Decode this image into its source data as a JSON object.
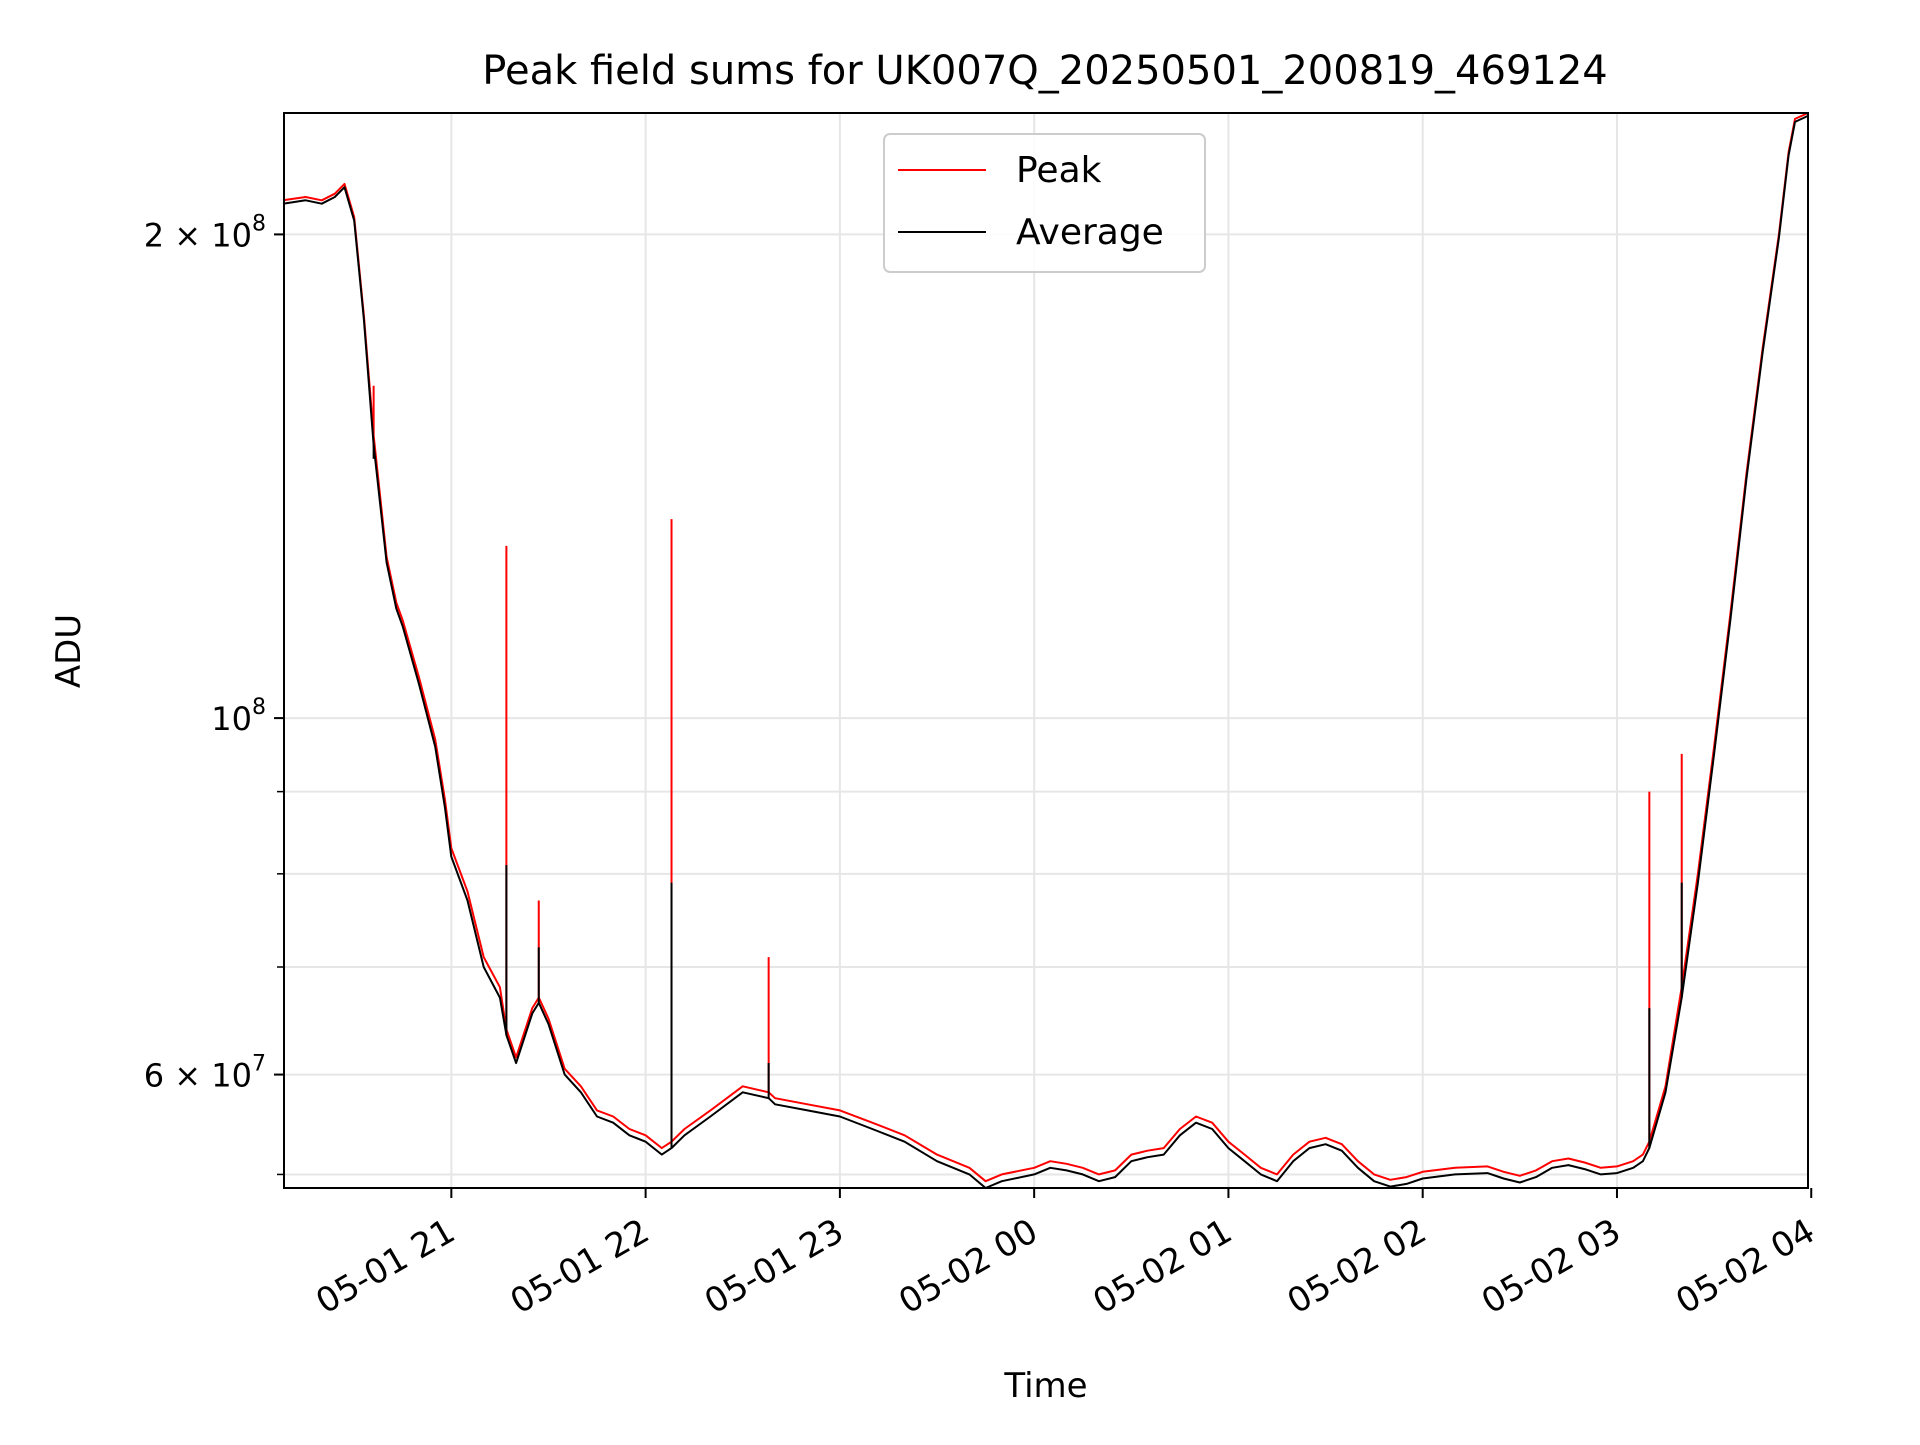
{
  "chart_data": {
    "type": "line",
    "title": "Peak field sums for UK007Q_20250501_200819_469124",
    "xlabel": "Time",
    "ylabel": "ADU",
    "y_scale": "log",
    "ylim": [
      51000000,
      238000000
    ],
    "xlim": [
      "2025-05-01 20:08:19",
      "2025-05-02 03:59:00"
    ],
    "grid": true,
    "legend_position": "upper center",
    "x_ticks": [
      {
        "t": "2025-05-01 21:00",
        "label": "05-01 21"
      },
      {
        "t": "2025-05-01 22:00",
        "label": "05-01 22"
      },
      {
        "t": "2025-05-01 23:00",
        "label": "05-01 23"
      },
      {
        "t": "2025-05-02 00:00",
        "label": "05-02 00"
      },
      {
        "t": "2025-05-02 01:00",
        "label": "05-02 01"
      },
      {
        "t": "2025-05-02 02:00",
        "label": "05-02 02"
      },
      {
        "t": "2025-05-02 03:00",
        "label": "05-02 03"
      },
      {
        "t": "2025-05-02 04:00",
        "label": "05-02 04"
      }
    ],
    "y_major_ticks": [
      {
        "value": 200000000,
        "mantissa": "2",
        "exponent": "8"
      },
      {
        "value": 100000000,
        "mantissa": "",
        "exponent": "8"
      },
      {
        "value": 60000000,
        "mantissa": "6",
        "exponent": "7"
      }
    ],
    "y_minor_ticks": [
      200000000,
      100000000,
      90000000,
      80000000,
      70000000,
      60000000,
      52000000
    ],
    "series": [
      {
        "name": "Peak",
        "color": "#ff0000",
        "x": [
          "2025-05-01 20:08",
          "2025-05-01 20:15",
          "2025-05-01 20:20",
          "2025-05-01 20:24",
          "2025-05-01 20:27",
          "2025-05-01 20:30",
          "2025-05-01 20:33",
          "2025-05-01 20:36",
          "2025-05-01 20:40",
          "2025-05-01 20:43",
          "2025-05-01 20:45",
          "2025-05-01 20:50",
          "2025-05-01 20:55",
          "2025-05-01 20:58",
          "2025-05-01 21:00",
          "2025-05-01 21:05",
          "2025-05-01 21:10",
          "2025-05-01 21:15",
          "2025-05-01 21:17",
          "2025-05-01 21:20",
          "2025-05-01 21:25",
          "2025-05-01 21:27",
          "2025-05-01 21:30",
          "2025-05-01 21:35",
          "2025-05-01 21:40",
          "2025-05-01 21:45",
          "2025-05-01 21:50",
          "2025-05-01 21:55",
          "2025-05-01 22:00",
          "2025-05-01 22:05",
          "2025-05-01 22:08",
          "2025-05-01 22:12",
          "2025-05-01 22:20",
          "2025-05-01 22:30",
          "2025-05-01 22:38",
          "2025-05-01 22:40",
          "2025-05-01 22:50",
          "2025-05-01 23:00",
          "2025-05-01 23:10",
          "2025-05-01 23:20",
          "2025-05-01 23:30",
          "2025-05-01 23:40",
          "2025-05-01 23:45",
          "2025-05-01 23:50",
          "2025-05-02 00:00",
          "2025-05-02 00:05",
          "2025-05-02 00:10",
          "2025-05-02 00:15",
          "2025-05-02 00:20",
          "2025-05-02 00:25",
          "2025-05-02 00:30",
          "2025-05-02 00:35",
          "2025-05-02 00:40",
          "2025-05-02 00:45",
          "2025-05-02 00:50",
          "2025-05-02 00:55",
          "2025-05-02 01:00",
          "2025-05-02 01:05",
          "2025-05-02 01:10",
          "2025-05-02 01:15",
          "2025-05-02 01:20",
          "2025-05-02 01:25",
          "2025-05-02 01:30",
          "2025-05-02 01:35",
          "2025-05-02 01:40",
          "2025-05-02 01:45",
          "2025-05-02 01:50",
          "2025-05-02 01:55",
          "2025-05-02 02:00",
          "2025-05-02 02:10",
          "2025-05-02 02:20",
          "2025-05-02 02:25",
          "2025-05-02 02:30",
          "2025-05-02 02:35",
          "2025-05-02 02:40",
          "2025-05-02 02:45",
          "2025-05-02 02:50",
          "2025-05-02 02:55",
          "2025-05-02 03:00",
          "2025-05-02 03:05",
          "2025-05-02 03:08",
          "2025-05-02 03:10",
          "2025-05-02 03:15",
          "2025-05-02 03:20",
          "2025-05-02 03:25",
          "2025-05-02 03:30",
          "2025-05-02 03:35",
          "2025-05-02 03:40",
          "2025-05-02 03:45",
          "2025-05-02 03:50",
          "2025-05-02 03:53",
          "2025-05-02 03:55",
          "2025-05-02 03:59"
        ],
        "values": [
          210000000,
          211000000,
          210000000,
          212000000,
          215000000,
          205000000,
          178000000,
          150000000,
          126000000,
          118000000,
          115000000,
          106000000,
          97000000,
          89000000,
          83000000,
          78000000,
          71000000,
          68000000,
          64000000,
          61500000,
          66000000,
          67000000,
          65000000,
          60500000,
          59000000,
          57000000,
          56500000,
          55500000,
          55000000,
          54000000,
          54500000,
          55500000,
          57000000,
          59000000,
          58500000,
          58000000,
          57500000,
          57000000,
          56000000,
          55000000,
          53500000,
          52500000,
          51500000,
          52000000,
          52500000,
          53000000,
          52800000,
          52500000,
          52000000,
          52300000,
          53500000,
          53800000,
          54000000,
          55500000,
          56500000,
          56000000,
          54500000,
          53500000,
          52500000,
          52000000,
          53500000,
          54500000,
          54800000,
          54300000,
          53000000,
          52000000,
          51600000,
          51800000,
          52200000,
          52500000,
          52600000,
          52200000,
          51900000,
          52300000,
          53000000,
          53200000,
          52900000,
          52500000,
          52600000,
          53000000,
          53500000,
          54500000,
          59000000,
          68000000,
          80000000,
          96000000,
          116000000,
          142000000,
          170000000,
          200000000,
          225000000,
          236000000,
          238000000
        ],
        "spikes": [
          {
            "t": "2025-05-01 20:36",
            "value": 161000000
          },
          {
            "t": "2025-05-01 21:17",
            "value": 128000000
          },
          {
            "t": "2025-05-01 21:27",
            "value": 77000000
          },
          {
            "t": "2025-05-01 22:08",
            "value": 133000000
          },
          {
            "t": "2025-05-01 22:38",
            "value": 71000000
          },
          {
            "t": "2025-05-02 03:10",
            "value": 90000000
          },
          {
            "t": "2025-05-02 03:20",
            "value": 95000000
          }
        ]
      },
      {
        "name": "Average",
        "color": "#000000",
        "x": [
          "2025-05-01 20:08",
          "2025-05-01 20:15",
          "2025-05-01 20:20",
          "2025-05-01 20:24",
          "2025-05-01 20:27",
          "2025-05-01 20:30",
          "2025-05-01 20:33",
          "2025-05-01 20:36",
          "2025-05-01 20:40",
          "2025-05-01 20:43",
          "2025-05-01 20:45",
          "2025-05-01 20:50",
          "2025-05-01 20:55",
          "2025-05-01 20:58",
          "2025-05-01 21:00",
          "2025-05-01 21:05",
          "2025-05-01 21:10",
          "2025-05-01 21:15",
          "2025-05-01 21:17",
          "2025-05-01 21:20",
          "2025-05-01 21:25",
          "2025-05-01 21:27",
          "2025-05-01 21:30",
          "2025-05-01 21:35",
          "2025-05-01 21:40",
          "2025-05-01 21:45",
          "2025-05-01 21:50",
          "2025-05-01 21:55",
          "2025-05-01 22:00",
          "2025-05-01 22:05",
          "2025-05-01 22:08",
          "2025-05-01 22:12",
          "2025-05-01 22:20",
          "2025-05-01 22:30",
          "2025-05-01 22:38",
          "2025-05-01 22:40",
          "2025-05-01 22:50",
          "2025-05-01 23:00",
          "2025-05-01 23:10",
          "2025-05-01 23:20",
          "2025-05-01 23:30",
          "2025-05-01 23:40",
          "2025-05-01 23:45",
          "2025-05-01 23:50",
          "2025-05-02 00:00",
          "2025-05-02 00:05",
          "2025-05-02 00:10",
          "2025-05-02 00:15",
          "2025-05-02 00:20",
          "2025-05-02 00:25",
          "2025-05-02 00:30",
          "2025-05-02 00:35",
          "2025-05-02 00:40",
          "2025-05-02 00:45",
          "2025-05-02 00:50",
          "2025-05-02 00:55",
          "2025-05-02 01:00",
          "2025-05-02 01:05",
          "2025-05-02 01:10",
          "2025-05-02 01:15",
          "2025-05-02 01:20",
          "2025-05-02 01:25",
          "2025-05-02 01:30",
          "2025-05-02 01:35",
          "2025-05-02 01:40",
          "2025-05-02 01:45",
          "2025-05-02 01:50",
          "2025-05-02 01:55",
          "2025-05-02 02:00",
          "2025-05-02 02:10",
          "2025-05-02 02:20",
          "2025-05-02 02:25",
          "2025-05-02 02:30",
          "2025-05-02 02:35",
          "2025-05-02 02:40",
          "2025-05-02 02:45",
          "2025-05-02 02:50",
          "2025-05-02 02:55",
          "2025-05-02 03:00",
          "2025-05-02 03:05",
          "2025-05-02 03:08",
          "2025-05-02 03:10",
          "2025-05-02 03:15",
          "2025-05-02 03:20",
          "2025-05-02 03:25",
          "2025-05-02 03:30",
          "2025-05-02 03:35",
          "2025-05-02 03:40",
          "2025-05-02 03:45",
          "2025-05-02 03:50",
          "2025-05-02 03:53",
          "2025-05-02 03:55",
          "2025-05-02 03:59"
        ],
        "values": [
          209000000,
          210000000,
          209000000,
          211000000,
          214000000,
          204000000,
          177000000,
          148000000,
          125000000,
          117000000,
          114000000,
          105000000,
          96000000,
          88000000,
          82000000,
          77000000,
          70000000,
          67000000,
          63500000,
          61000000,
          65500000,
          66500000,
          64500000,
          60000000,
          58500000,
          56500000,
          56000000,
          55000000,
          54500000,
          53500000,
          54000000,
          55000000,
          56500000,
          58500000,
          58000000,
          57500000,
          57000000,
          56500000,
          55500000,
          54500000,
          53000000,
          52000000,
          51000000,
          51500000,
          52000000,
          52500000,
          52300000,
          52000000,
          51500000,
          51800000,
          53000000,
          53300000,
          53500000,
          55000000,
          56000000,
          55500000,
          54000000,
          53000000,
          52000000,
          51500000,
          53000000,
          54000000,
          54300000,
          53800000,
          52500000,
          51500000,
          51100000,
          51300000,
          51700000,
          52000000,
          52100000,
          51700000,
          51400000,
          51800000,
          52500000,
          52700000,
          52400000,
          52000000,
          52100000,
          52500000,
          53000000,
          54000000,
          58500000,
          67000000,
          79000000,
          95000000,
          115000000,
          141000000,
          169000000,
          199000000,
          224000000,
          235000000,
          237000000
        ],
        "spikes": [
          {
            "t": "2025-05-01 20:36",
            "value": 145000000
          },
          {
            "t": "2025-05-01 21:17",
            "value": 81000000
          },
          {
            "t": "2025-05-01 21:27",
            "value": 72000000
          },
          {
            "t": "2025-05-01 22:08",
            "value": 79000000
          },
          {
            "t": "2025-05-01 22:38",
            "value": 61000000
          },
          {
            "t": "2025-05-02 03:10",
            "value": 66000000
          },
          {
            "t": "2025-05-02 03:20",
            "value": 79000000
          }
        ]
      }
    ]
  }
}
